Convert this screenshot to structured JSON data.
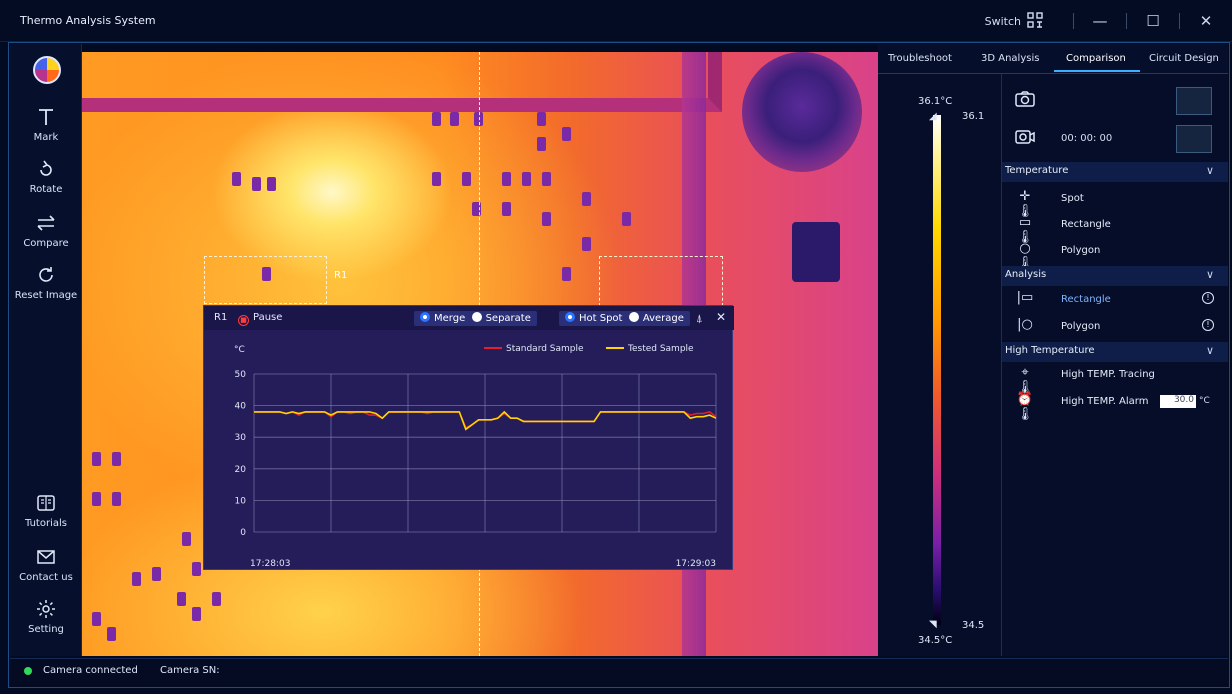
{
  "app": {
    "title": "Thermo Analysis System",
    "switch_label": "Switch",
    "window_controls": [
      "minimize-icon",
      "maximize-icon",
      "close-icon"
    ]
  },
  "sidebar": {
    "items": [
      {
        "label": "Mark",
        "icon": "text-cursor-icon"
      },
      {
        "label": "Rotate",
        "icon": "rotate-icon"
      },
      {
        "label": "Compare",
        "icon": "compare-arrows-icon"
      },
      {
        "label": "Reset Image",
        "icon": "reset-icon"
      },
      {
        "label": "Tutorials",
        "icon": "book-icon"
      },
      {
        "label": "Contact us",
        "icon": "mail-icon"
      },
      {
        "label": "Setting",
        "icon": "gear-icon"
      }
    ]
  },
  "roi": {
    "label": "R1"
  },
  "chart_popup": {
    "title": "R1",
    "pause_label": "Pause",
    "merge_label": "Merge",
    "separate_label": "Separate",
    "hotspot_label": "Hot Spot",
    "average_label": "Average",
    "unit": "°C"
  },
  "chart_data": {
    "type": "line",
    "ylabel": "°C",
    "ylim": [
      0,
      50
    ],
    "yticks": [
      0,
      10,
      20,
      30,
      40,
      50
    ],
    "x_start_label": "17:28:03",
    "x_end_label": "17:29:03",
    "grid": true,
    "legend_position": "top-right",
    "series": [
      {
        "name": "Standard Sample",
        "color": "#e0202a",
        "values": [
          38,
          38,
          38,
          38,
          38,
          37.5,
          38,
          37,
          38,
          38,
          38,
          38,
          36.5,
          38,
          38,
          37.5,
          38,
          38,
          37,
          37,
          36,
          38,
          38,
          38,
          38,
          38,
          38,
          37.5,
          38,
          38,
          38,
          38,
          38,
          33,
          34,
          35.5,
          35.5,
          35.5,
          36,
          37.5,
          36,
          36,
          35,
          35,
          35,
          35,
          35,
          35,
          35,
          35,
          35,
          35,
          35,
          35,
          38,
          38,
          38,
          38,
          38,
          38,
          38,
          38,
          38,
          38,
          38,
          38,
          38,
          38,
          37,
          37.5,
          37.5,
          38,
          36.5
        ]
      },
      {
        "name": "Tested Sample",
        "color": "#ffd400",
        "values": [
          38,
          38,
          38,
          38,
          38,
          37.5,
          38,
          37.5,
          38,
          38,
          38,
          38,
          37,
          38,
          38,
          38,
          38,
          38,
          38,
          37.5,
          36,
          38,
          38,
          38,
          38,
          38,
          38,
          38,
          38,
          38,
          38,
          38,
          38,
          32.5,
          34,
          35.5,
          35.5,
          35.5,
          36,
          38,
          36,
          36,
          35,
          35,
          35,
          35,
          35,
          35,
          35,
          35,
          35,
          35,
          35,
          35,
          38,
          38,
          38,
          38,
          38,
          38,
          38,
          38,
          38,
          38,
          38,
          38,
          38,
          38,
          36,
          36.5,
          36.5,
          37,
          36
        ]
      }
    ]
  },
  "tabs": [
    {
      "label": "Troubleshoot"
    },
    {
      "label": "3D Analysis"
    },
    {
      "label": "Comparison",
      "active": true
    },
    {
      "label": "Circuit Design"
    }
  ],
  "scale": {
    "max_label": "36.1°C",
    "min_label": "34.5°C",
    "max_marker": "36.1",
    "min_marker": "34.5"
  },
  "capture": {
    "timer": "00: 00: 00"
  },
  "temperature": {
    "header": "Temperature",
    "items": [
      {
        "label": "Spot",
        "icon": "spot-thermometer-icon"
      },
      {
        "label": "Rectangle",
        "icon": "rectangle-thermometer-icon"
      },
      {
        "label": "Polygon",
        "icon": "polygon-thermometer-icon"
      }
    ]
  },
  "analysis": {
    "header": "Analysis",
    "items": [
      {
        "label": "Rectangle",
        "icon": "rectangle-analysis-icon"
      },
      {
        "label": "Polygon",
        "icon": "polygon-analysis-icon"
      }
    ]
  },
  "high_temperature": {
    "header": "High Temperature",
    "tracing_label": "High TEMP. Tracing",
    "alarm_label": "High TEMP. Alarm",
    "alarm_value": "30.0",
    "alarm_unit": "°C"
  },
  "status": {
    "connection": "Camera connected",
    "sn_label": "Camera SN:"
  },
  "colors": {
    "accent": "#3ab0ff",
    "background": "#030b22",
    "status_ok": "#33d85a"
  }
}
